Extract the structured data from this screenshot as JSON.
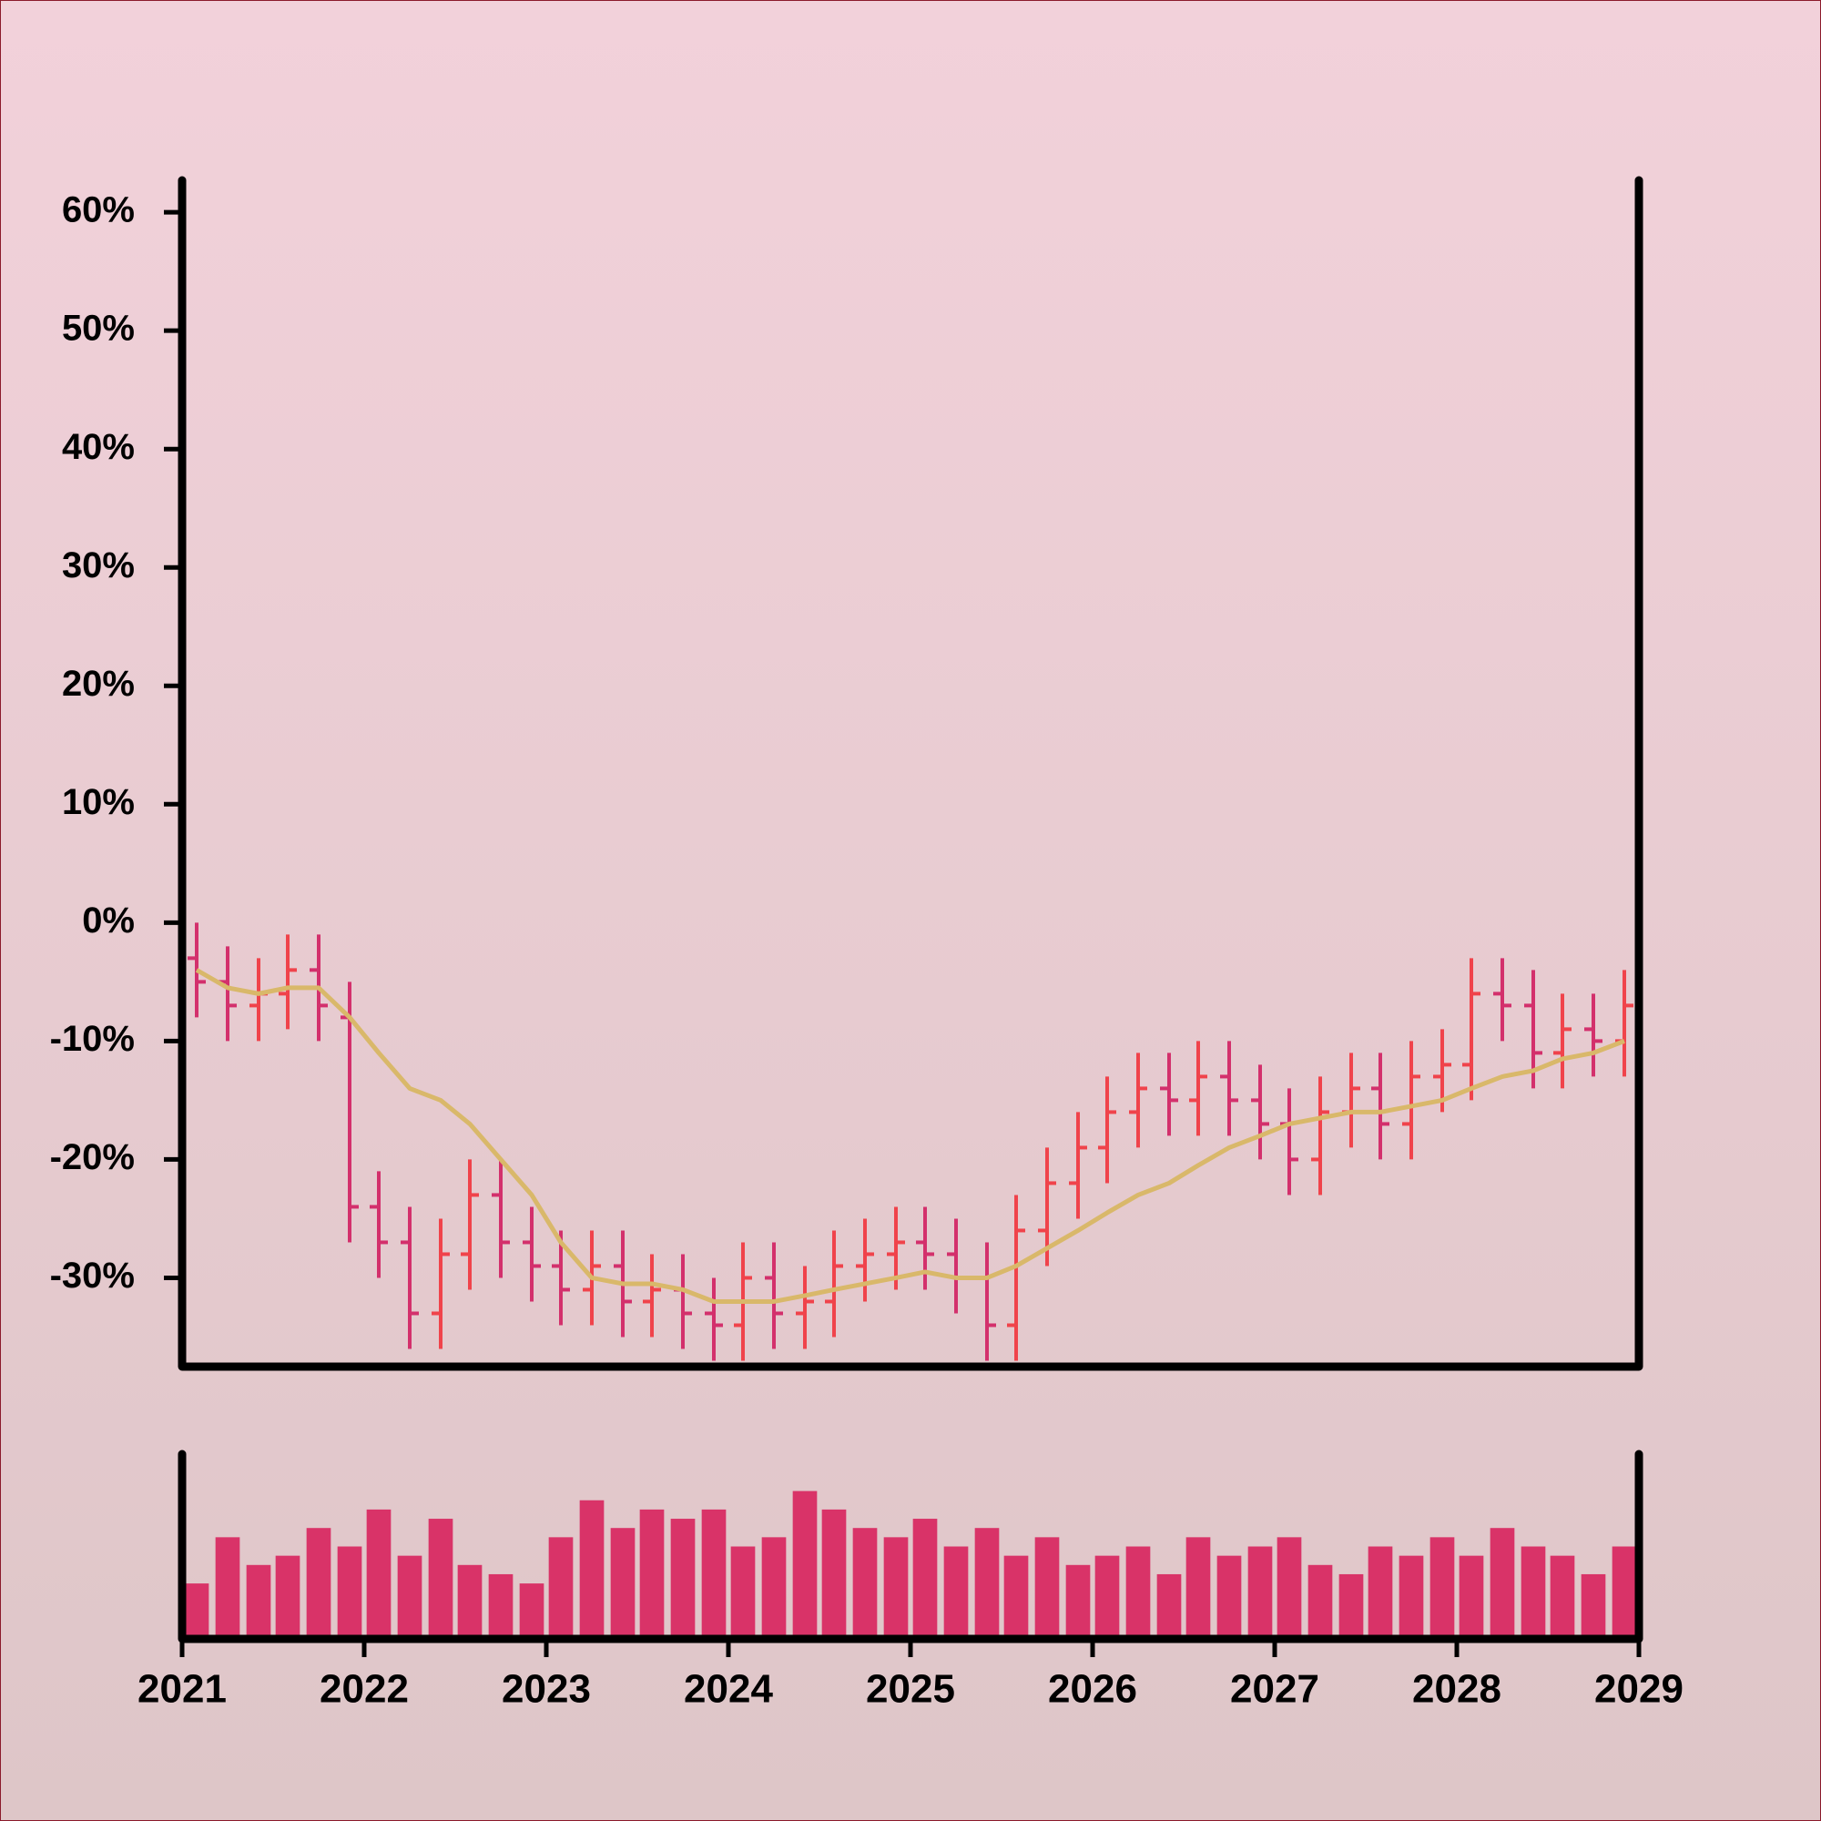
{
  "chart_data": [
    {
      "type": "ohlc",
      "x": [
        2021.08,
        2021.25,
        2021.42,
        2021.58,
        2021.75,
        2021.92,
        2022.08,
        2022.25,
        2022.42,
        2022.58,
        2022.75,
        2022.92,
        2023.08,
        2023.25,
        2023.42,
        2023.58,
        2023.75,
        2023.92,
        2024.08,
        2024.25,
        2024.42,
        2024.58,
        2024.75,
        2024.92,
        2025.08,
        2025.25,
        2025.42,
        2025.58,
        2025.75,
        2025.92,
        2026.08,
        2026.25,
        2026.42,
        2026.58,
        2026.75,
        2026.92,
        2027.08,
        2027.25,
        2027.42,
        2027.58,
        2027.75,
        2027.92,
        2028.08,
        2028.25,
        2028.42,
        2028.58,
        2028.75,
        2028.92
      ],
      "open": [
        -3,
        -5,
        -7,
        -6,
        -4,
        -8,
        -24,
        -27,
        -33,
        -28,
        -23,
        -27,
        -29,
        -31,
        -29,
        -32,
        -31,
        -33,
        -34,
        -30,
        -33,
        -32,
        -29,
        -28,
        -27,
        -28,
        -30,
        -34,
        -26,
        -22,
        -19,
        -16,
        -14,
        -15,
        -13,
        -15,
        -17,
        -20,
        -16,
        -14,
        -17,
        -13,
        -12,
        -6,
        -7,
        -11,
        -9,
        -10
      ],
      "high": [
        0,
        -2,
        -3,
        -1,
        -1,
        -5,
        -21,
        -24,
        -25,
        -20,
        -20,
        -24,
        -26,
        -26,
        -26,
        -28,
        -28,
        -30,
        -27,
        -27,
        -29,
        -26,
        -25,
        -24,
        -24,
        -25,
        -27,
        -23,
        -19,
        -16,
        -13,
        -11,
        -11,
        -10,
        -10,
        -12,
        -14,
        -13,
        -11,
        -11,
        -10,
        -9,
        -3,
        -3,
        -4,
        -6,
        -6,
        -4
      ],
      "low": [
        -8,
        -10,
        -10,
        -9,
        -10,
        -27,
        -30,
        -36,
        -36,
        -31,
        -30,
        -32,
        -34,
        -34,
        -35,
        -35,
        -36,
        -37,
        -37,
        -36,
        -36,
        -35,
        -32,
        -31,
        -31,
        -33,
        -37,
        -37,
        -29,
        -25,
        -22,
        -19,
        -18,
        -18,
        -18,
        -20,
        -23,
        -23,
        -19,
        -20,
        -20,
        -16,
        -15,
        -10,
        -14,
        -14,
        -13,
        -13
      ],
      "close": [
        -5,
        -7,
        -6,
        -4,
        -7,
        -24,
        -27,
        -33,
        -28,
        -23,
        -27,
        -29,
        -31,
        -29,
        -32,
        -31,
        -33,
        -34,
        -30,
        -33,
        -32,
        -29,
        -28,
        -27,
        -28,
        -30,
        -34,
        -26,
        -22,
        -19,
        -16,
        -14,
        -15,
        -13,
        -15,
        -17,
        -20,
        -16,
        -14,
        -17,
        -13,
        -12,
        -6,
        -7,
        -11,
        -9,
        -10,
        -7
      ],
      "up_color": "#f0434b",
      "down_color": "#d3306c",
      "line": {
        "color": "#d9b86a",
        "values": [
          -4,
          -5.5,
          -6,
          -5.5,
          -5.5,
          -8,
          -11,
          -14,
          -15,
          -17,
          -20,
          -23,
          -27,
          -30,
          -30.5,
          -30.5,
          -31,
          -32,
          -32,
          -32,
          -31.5,
          -31,
          -30.5,
          -30,
          -29.5,
          -30,
          -30,
          -29,
          -27.5,
          -26,
          -24.5,
          -23,
          -22,
          -20.5,
          -19,
          -18,
          -17,
          -16.5,
          -16,
          -16,
          -15.5,
          -15,
          -14,
          -13,
          -12.5,
          -11.5,
          -11,
          -10
        ]
      },
      "xlim": [
        2021,
        2029
      ],
      "ylim": [
        -37.5,
        62.7
      ],
      "yticks": [
        {
          "value": -30,
          "label": "-30%"
        },
        {
          "value": -20,
          "label": "-20%"
        },
        {
          "value": -10,
          "label": "-10%"
        },
        {
          "value": 0,
          "label": "0%"
        },
        {
          "value": 10,
          "label": "10%"
        },
        {
          "value": 20,
          "label": "20%"
        },
        {
          "value": 30,
          "label": "30%"
        },
        {
          "value": 40,
          "label": "40%"
        },
        {
          "value": 50,
          "label": "50%"
        },
        {
          "value": 60,
          "label": "60%"
        }
      ]
    },
    {
      "type": "bar",
      "color": "#d93368",
      "x": [
        2021.08,
        2021.25,
        2021.42,
        2021.58,
        2021.75,
        2021.92,
        2022.08,
        2022.25,
        2022.42,
        2022.58,
        2022.75,
        2022.92,
        2023.08,
        2023.25,
        2023.42,
        2023.58,
        2023.75,
        2023.92,
        2024.08,
        2024.25,
        2024.42,
        2024.58,
        2024.75,
        2024.92,
        2025.08,
        2025.25,
        2025.42,
        2025.58,
        2025.75,
        2025.92,
        2026.08,
        2026.25,
        2026.42,
        2026.58,
        2026.75,
        2026.92,
        2027.08,
        2027.25,
        2027.42,
        2027.58,
        2027.75,
        2027.92,
        2028.08,
        2028.25,
        2028.42,
        2028.58,
        2028.75,
        2028.92
      ],
      "values": [
        30,
        55,
        40,
        45,
        60,
        50,
        70,
        45,
        65,
        40,
        35,
        30,
        55,
        75,
        60,
        70,
        65,
        70,
        50,
        55,
        80,
        70,
        60,
        55,
        65,
        50,
        60,
        45,
        55,
        40,
        45,
        50,
        35,
        55,
        45,
        50,
        55,
        40,
        35,
        50,
        45,
        55,
        45,
        60,
        50,
        45,
        35,
        50
      ],
      "xlim": [
        2021,
        2029
      ],
      "ylim": [
        0,
        100
      ],
      "xticks": [
        2021,
        2022,
        2023,
        2024,
        2025,
        2026,
        2027,
        2028,
        2029
      ]
    }
  ]
}
